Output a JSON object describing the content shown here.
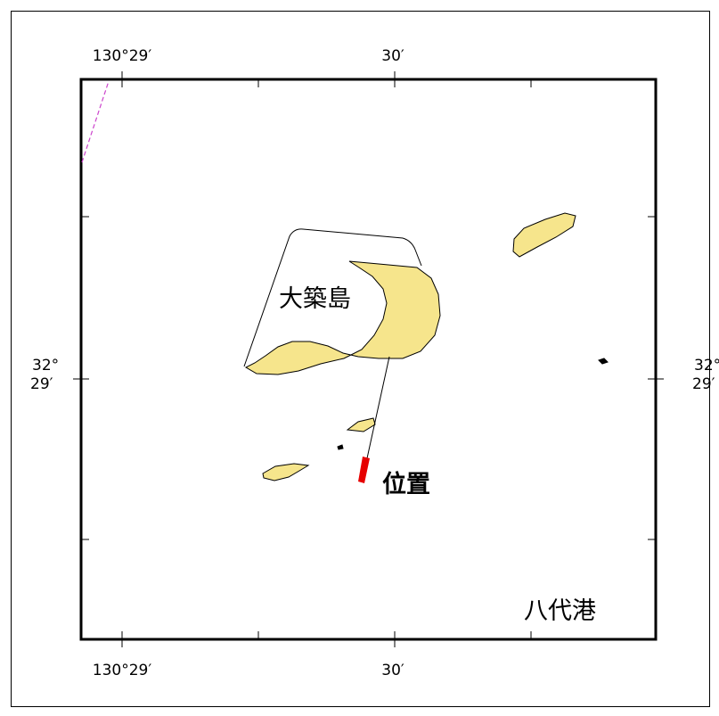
{
  "map": {
    "labels": {
      "top_left_lon": "130°29′",
      "top_mid_lon": "30′",
      "bottom_left_lon": "130°29′",
      "bottom_mid_lon": "30′",
      "left_lat_deg": "32°",
      "left_lat_min": "29′",
      "right_lat_deg": "32°",
      "right_lat_min": "29′",
      "island_name": "大築島",
      "location_label": "位置",
      "port_name": "八代港"
    },
    "colors": {
      "land": "#f6e58c",
      "marker": "#e60000",
      "boundary_dashed": "#cc44cc",
      "frame": "#000000"
    }
  }
}
